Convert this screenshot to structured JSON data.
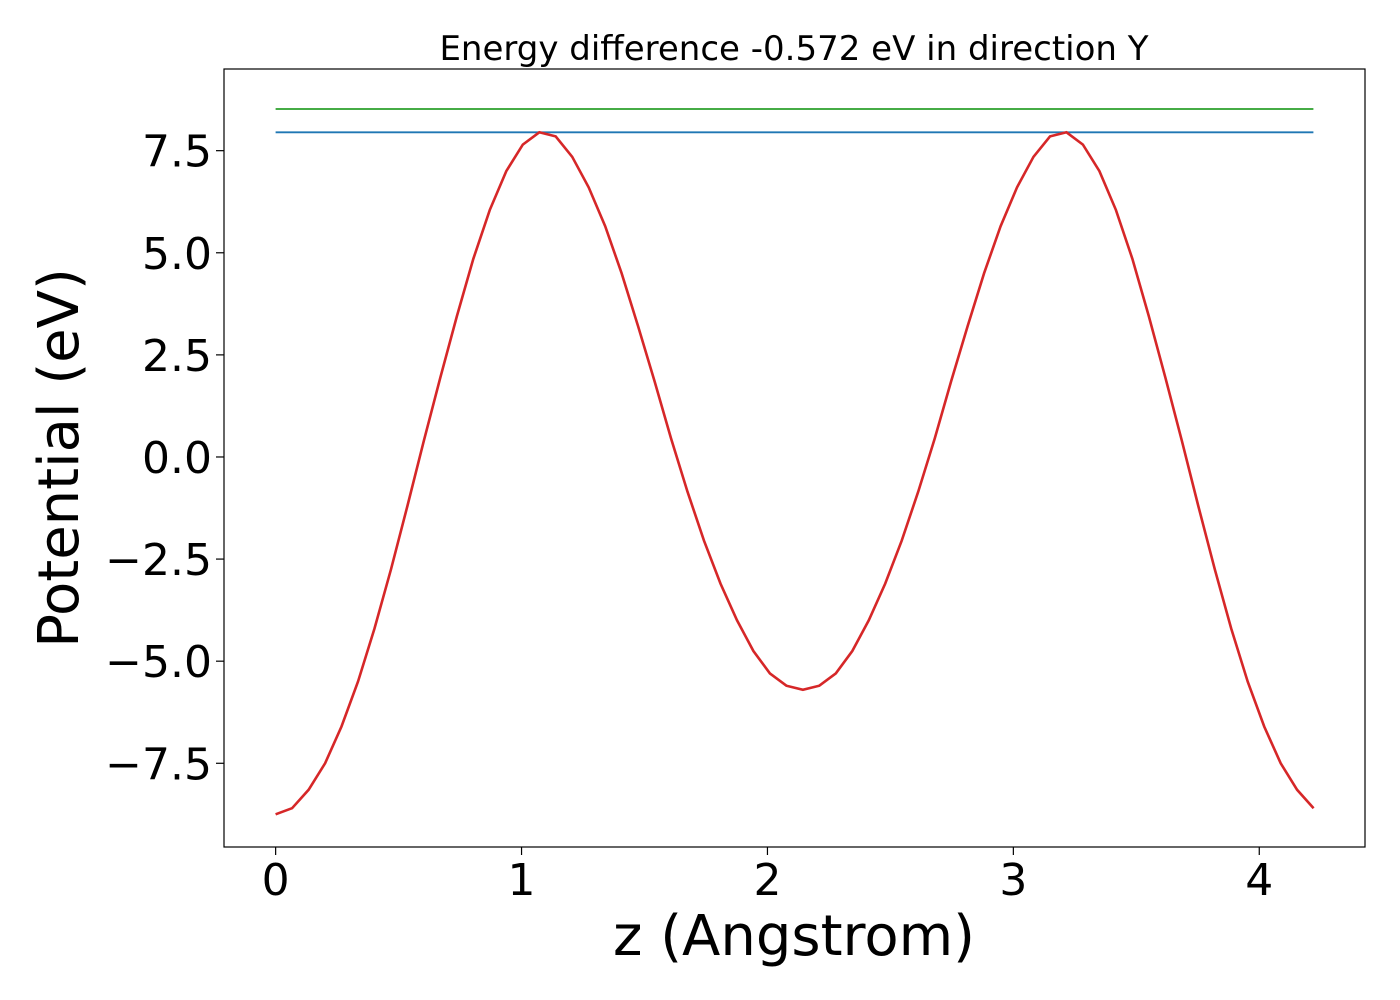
{
  "chart_data": {
    "type": "line",
    "title": "Energy difference -0.572 eV in direction Y",
    "xlabel": "z (Angstrom)",
    "ylabel": "Potential (eV)",
    "xlim": [
      -0.21,
      4.43
    ],
    "ylim": [
      -9.55,
      9.5
    ],
    "xticks": [
      0,
      1,
      2,
      3,
      4
    ],
    "xtick_labels": [
      "0",
      "1",
      "2",
      "3",
      "4"
    ],
    "yticks": [
      -7.5,
      -5.0,
      -2.5,
      0.0,
      2.5,
      5.0,
      7.5
    ],
    "ytick_labels": [
      "−7.5",
      "−5.0",
      "−2.5",
      "0.0",
      "2.5",
      "5.0",
      "7.5"
    ],
    "grid": false,
    "series": [
      {
        "color": "#2ca02c",
        "x": [
          0,
          4.22
        ],
        "y": [
          8.52,
          8.52
        ]
      },
      {
        "color": "#1f77b4",
        "x": [
          0,
          4.22
        ],
        "y": [
          7.95,
          7.95
        ]
      },
      {
        "color": "#d62728",
        "x": [
          0.0,
          0.067,
          0.134,
          0.201,
          0.268,
          0.335,
          0.402,
          0.469,
          0.536,
          0.603,
          0.67,
          0.737,
          0.804,
          0.871,
          0.938,
          1.005,
          1.072,
          1.139,
          1.206,
          1.273,
          1.34,
          1.407,
          1.474,
          1.541,
          1.608,
          1.675,
          1.742,
          1.809,
          1.876,
          1.943,
          2.01,
          2.077,
          2.144,
          2.211,
          2.278,
          2.345,
          2.412,
          2.479,
          2.546,
          2.613,
          2.68,
          2.747,
          2.814,
          2.881,
          2.948,
          3.015,
          3.082,
          3.149,
          3.216,
          3.283,
          3.35,
          3.417,
          3.484,
          3.551,
          3.618,
          3.685,
          3.752,
          3.819,
          3.886,
          3.953,
          4.02,
          4.087,
          4.154,
          4.221
        ],
        "y": [
          -8.75,
          -8.6,
          -8.15,
          -7.5,
          -6.6,
          -5.5,
          -4.2,
          -2.75,
          -1.2,
          0.4,
          1.95,
          3.45,
          4.85,
          6.05,
          7.0,
          7.65,
          7.95,
          7.85,
          7.35,
          6.6,
          5.65,
          4.5,
          3.2,
          1.85,
          0.45,
          -0.85,
          -2.05,
          -3.1,
          -4.0,
          -4.75,
          -5.3,
          -5.6,
          -5.7,
          -5.6,
          -5.3,
          -4.75,
          -4.0,
          -3.1,
          -2.05,
          -0.85,
          0.45,
          1.85,
          3.2,
          4.5,
          5.65,
          6.6,
          7.35,
          7.85,
          7.95,
          7.65,
          7.0,
          6.05,
          4.85,
          3.45,
          1.95,
          0.4,
          -1.2,
          -2.75,
          -4.2,
          -5.5,
          -6.6,
          -7.5,
          -8.15,
          -8.6
        ]
      }
    ]
  }
}
